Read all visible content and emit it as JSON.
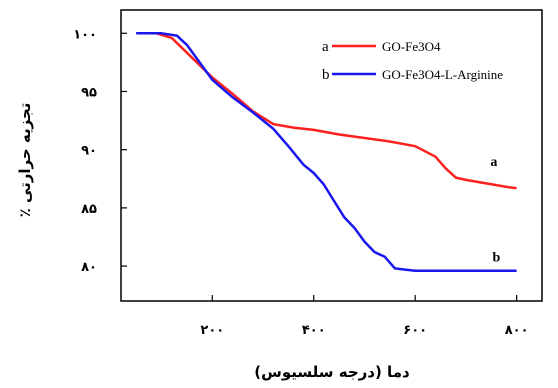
{
  "chart_data": {
    "type": "line",
    "xlabel": "دما (درجه سلسیوس)",
    "ylabel": "تجزیه حرارتی ٪",
    "xlim": [
      20,
      850
    ],
    "ylim": [
      77,
      102
    ],
    "x_ticks": [
      {
        "value": 200,
        "label": "۲۰۰"
      },
      {
        "value": 400,
        "label": "۴۰۰"
      },
      {
        "value": 600,
        "label": "۶۰۰"
      },
      {
        "value": 800,
        "label": "۸۰۰"
      }
    ],
    "y_ticks": [
      {
        "value": 80,
        "label": "۸۰"
      },
      {
        "value": 85,
        "label": "۸۵"
      },
      {
        "value": 90,
        "label": "۹۰"
      },
      {
        "value": 95,
        "label": "۹۵"
      },
      {
        "value": 100,
        "label": "۱۰۰"
      }
    ],
    "legend_position": "top-right",
    "series": [
      {
        "name": "GO-Fe3O4",
        "key": "a",
        "color": "#ff2020",
        "end_label": "a",
        "end_label_at": [
          755,
          88.6
        ],
        "x": [
          50,
          90,
          120,
          160,
          200,
          240,
          280,
          320,
          360,
          400,
          450,
          500,
          550,
          600,
          640,
          660,
          680,
          700,
          740,
          780,
          800
        ],
        "y": [
          100,
          100,
          99.6,
          97.9,
          96.2,
          94.8,
          93.3,
          92.2,
          91.9,
          91.7,
          91.3,
          91.0,
          90.7,
          90.3,
          89.4,
          88.4,
          87.6,
          87.4,
          87.1,
          86.8,
          86.7
        ]
      },
      {
        "name": "GO-Fe3O4-L-Arginine",
        "key": "b",
        "color": "#1818ee",
        "end_label": "b",
        "end_label_at": [
          760,
          80.4
        ],
        "x": [
          50,
          100,
          130,
          150,
          170,
          200,
          240,
          280,
          320,
          350,
          380,
          400,
          420,
          440,
          460,
          480,
          500,
          520,
          540,
          560,
          580,
          600,
          620,
          650,
          700,
          750,
          800
        ],
        "y": [
          100,
          100,
          99.8,
          99.0,
          97.8,
          96.0,
          94.5,
          93.2,
          91.8,
          90.3,
          88.7,
          88.0,
          87.0,
          85.6,
          84.2,
          83.3,
          82.1,
          81.2,
          80.8,
          79.8,
          79.7,
          79.6,
          79.6,
          79.6,
          79.6,
          79.6,
          79.6
        ]
      }
    ]
  }
}
